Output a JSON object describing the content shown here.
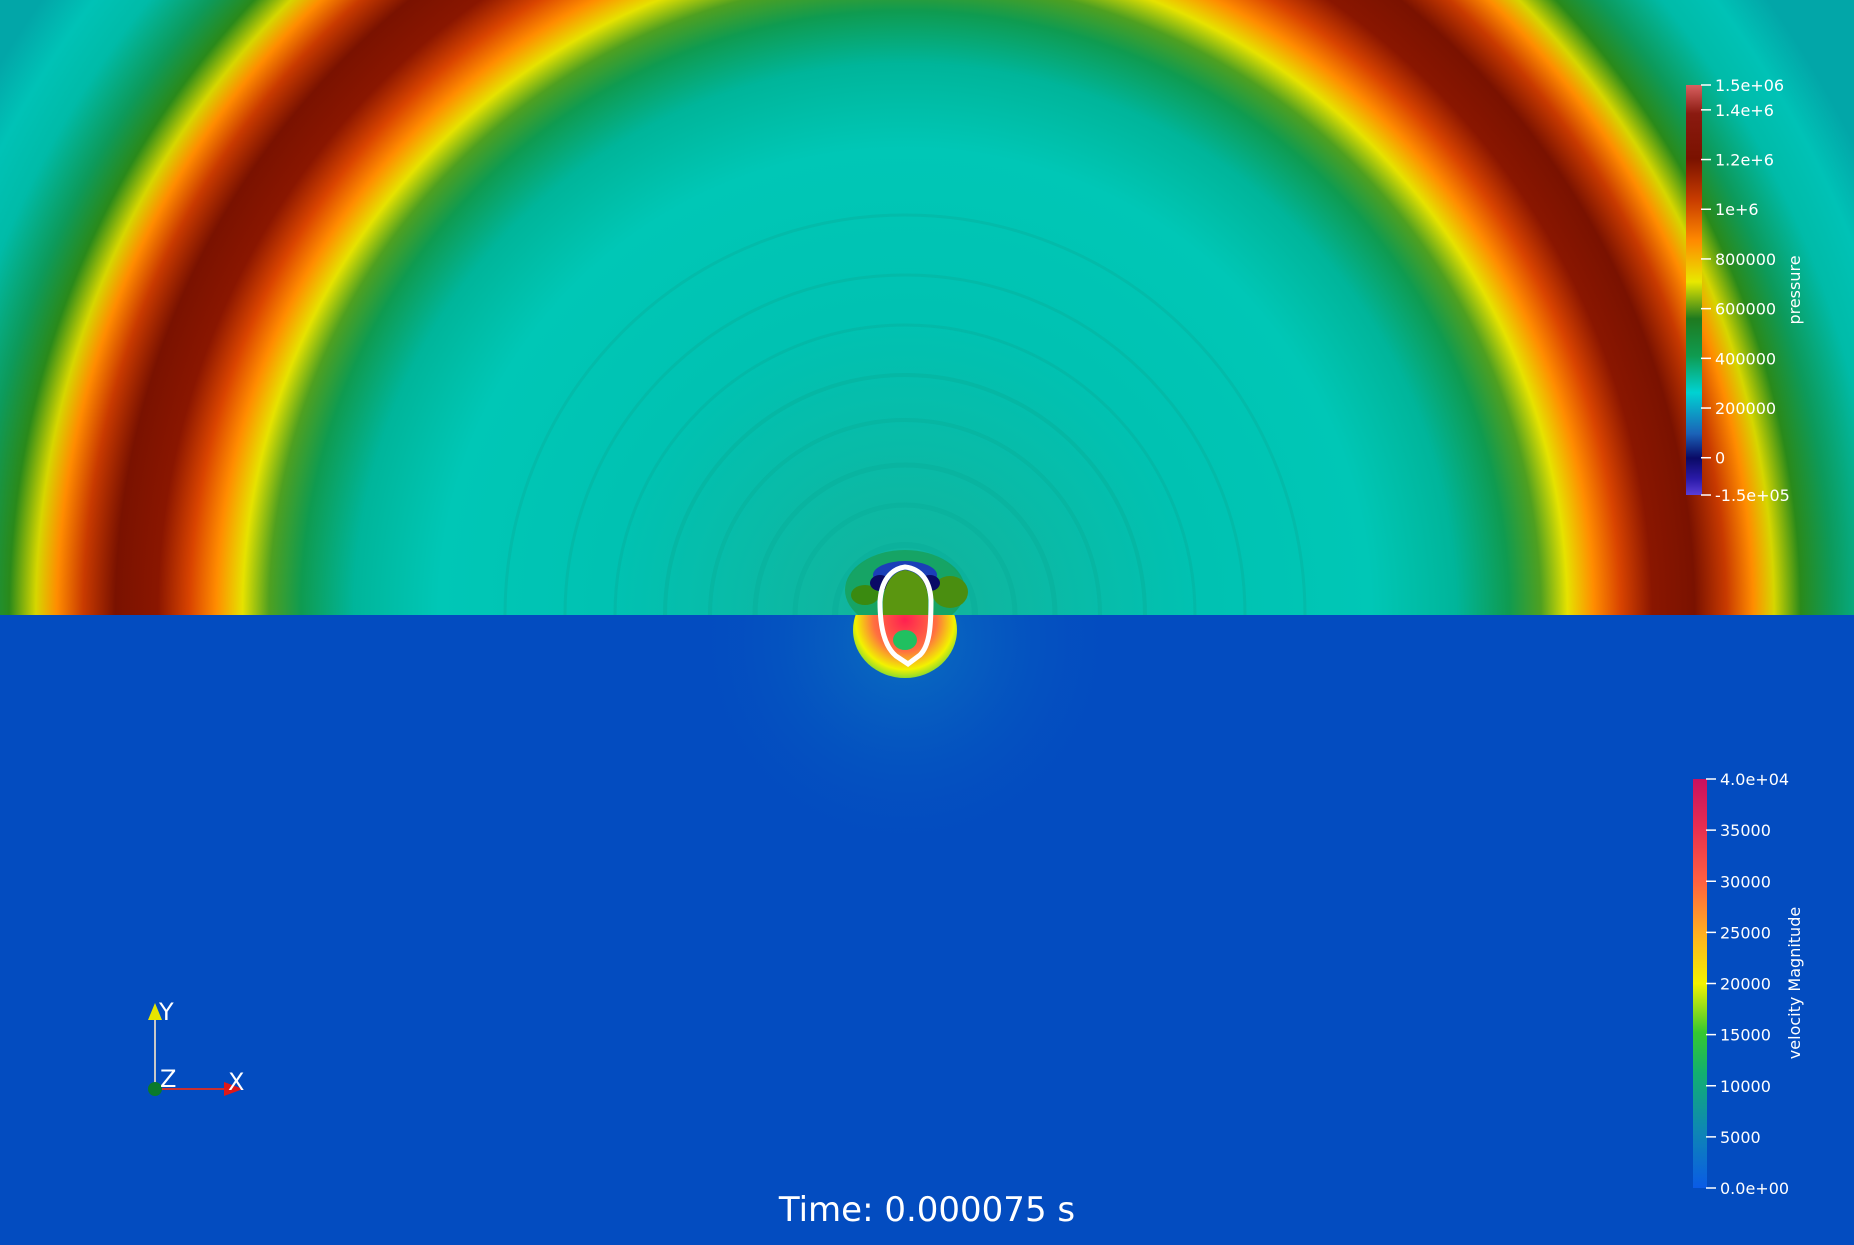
{
  "time_annotation": "Time: 0.000075 s",
  "pressure_bar": {
    "title": "pressure",
    "tick_labels": [
      "1.5e+06",
      "1.4e+6",
      "1.2e+6",
      "1e+6",
      "800000",
      "600000",
      "400000",
      "200000",
      "0",
      "-1.5e+05"
    ],
    "tick_values": [
      1500000,
      1400000,
      1200000,
      1000000,
      800000,
      600000,
      400000,
      200000,
      0,
      -150000
    ],
    "range": [
      -150000,
      1500000
    ],
    "colormap": [
      "#5a3ed6",
      "#0a0a66",
      "#1b63b8",
      "#00d2d2",
      "#0f9b50",
      "#1f7a1f",
      "#e8e800",
      "#ff8a00",
      "#c83c00",
      "#7a1200",
      "#d86060"
    ]
  },
  "velocity_bar": {
    "title": "velocity Magnitude",
    "tick_labels": [
      "4.0e+04",
      "35000",
      "30000",
      "25000",
      "20000",
      "15000",
      "10000",
      "5000",
      "0.0e+00"
    ],
    "tick_values": [
      40000,
      35000,
      30000,
      25000,
      20000,
      15000,
      10000,
      5000,
      0
    ],
    "range": [
      0,
      40000
    ],
    "colormap": [
      "#0a5be6",
      "#0e8ab0",
      "#12b070",
      "#35c830",
      "#f2f200",
      "#ffb020",
      "#ff6040",
      "#e82e50",
      "#c81060"
    ]
  },
  "orientation_axes": {
    "x_label": "X",
    "y_label": "Y",
    "z_label": "Z"
  },
  "colors": {
    "pressure_background": "#00c7b4",
    "velocity_background": "#034cc0",
    "interface": "#ffffff"
  }
}
